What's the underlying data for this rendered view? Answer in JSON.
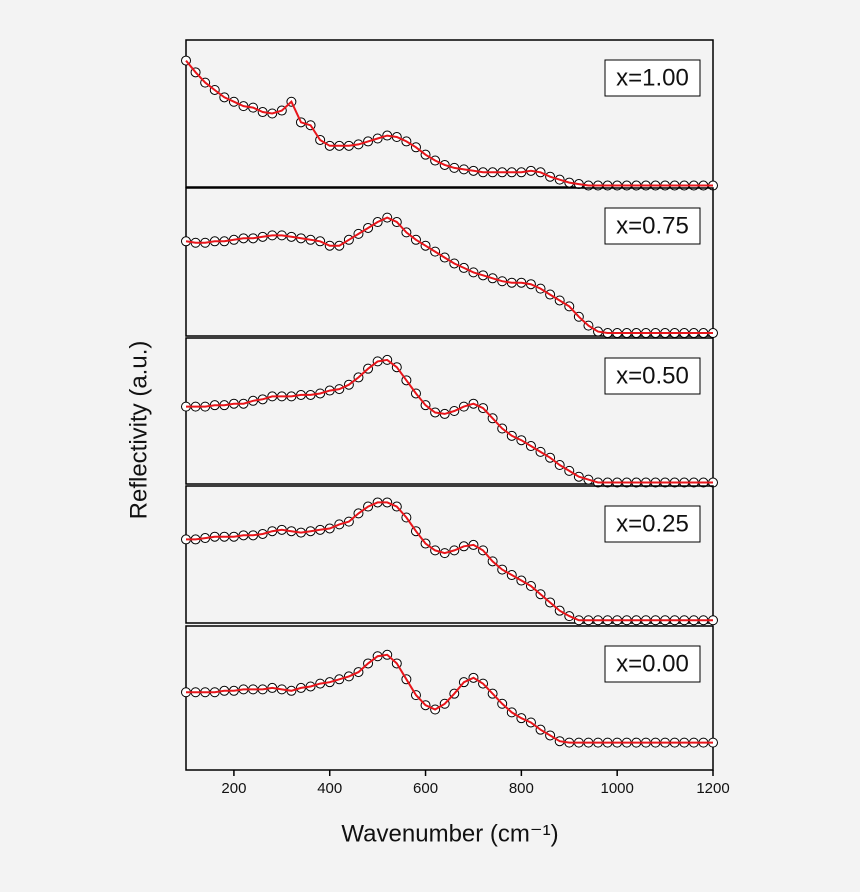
{
  "chart_data": {
    "type": "line",
    "x_label": "Wavenumber (cm⁻¹)",
    "y_label": "Reflectivity (a.u.)",
    "xlim": [
      100,
      1200
    ],
    "xticks": [
      200,
      400,
      600,
      800,
      1000,
      1200
    ],
    "ylim": [
      0,
      1
    ],
    "marker_color": "#000000",
    "line_color": "#e8161b",
    "x": [
      100,
      120,
      140,
      160,
      180,
      200,
      220,
      240,
      260,
      280,
      300,
      320,
      340,
      360,
      380,
      400,
      420,
      440,
      460,
      480,
      500,
      520,
      540,
      560,
      580,
      600,
      620,
      640,
      660,
      680,
      700,
      720,
      740,
      760,
      780,
      800,
      820,
      840,
      860,
      880,
      900,
      920,
      940,
      960,
      980,
      1000,
      1020,
      1040,
      1060,
      1080,
      1100,
      1120,
      1140,
      1160,
      1180,
      1200
    ],
    "series": [
      {
        "name": "x=1.00",
        "values": [
          0.86,
          0.78,
          0.71,
          0.66,
          0.61,
          0.58,
          0.55,
          0.54,
          0.51,
          0.5,
          0.52,
          0.58,
          0.44,
          0.42,
          0.32,
          0.28,
          0.28,
          0.28,
          0.29,
          0.31,
          0.33,
          0.35,
          0.34,
          0.31,
          0.27,
          0.22,
          0.18,
          0.15,
          0.13,
          0.12,
          0.11,
          0.1,
          0.1,
          0.1,
          0.1,
          0.1,
          0.11,
          0.1,
          0.07,
          0.05,
          0.03,
          0.02,
          0.01,
          0.01,
          0.01,
          0.01,
          0.01,
          0.01,
          0.01,
          0.01,
          0.01,
          0.01,
          0.01,
          0.01,
          0.01,
          0.01
        ]
      },
      {
        "name": "x=0.75",
        "values": [
          0.64,
          0.63,
          0.63,
          0.64,
          0.64,
          0.65,
          0.66,
          0.66,
          0.67,
          0.68,
          0.68,
          0.67,
          0.66,
          0.65,
          0.64,
          0.61,
          0.61,
          0.65,
          0.69,
          0.73,
          0.77,
          0.8,
          0.77,
          0.7,
          0.65,
          0.61,
          0.57,
          0.53,
          0.49,
          0.46,
          0.43,
          0.41,
          0.39,
          0.37,
          0.36,
          0.36,
          0.35,
          0.32,
          0.28,
          0.24,
          0.2,
          0.13,
          0.07,
          0.03,
          0.02,
          0.02,
          0.02,
          0.02,
          0.02,
          0.02,
          0.02,
          0.02,
          0.02,
          0.02,
          0.02,
          0.02
        ]
      },
      {
        "name": "x=0.50",
        "values": [
          0.53,
          0.53,
          0.53,
          0.54,
          0.54,
          0.55,
          0.55,
          0.57,
          0.58,
          0.6,
          0.6,
          0.6,
          0.61,
          0.61,
          0.62,
          0.64,
          0.65,
          0.68,
          0.73,
          0.79,
          0.84,
          0.85,
          0.8,
          0.71,
          0.62,
          0.54,
          0.49,
          0.48,
          0.5,
          0.53,
          0.55,
          0.52,
          0.45,
          0.38,
          0.33,
          0.3,
          0.26,
          0.22,
          0.18,
          0.13,
          0.09,
          0.05,
          0.03,
          0.01,
          0.01,
          0.01,
          0.01,
          0.01,
          0.01,
          0.01,
          0.01,
          0.01,
          0.01,
          0.01,
          0.01,
          0.01
        ]
      },
      {
        "name": "x=0.25",
        "values": [
          0.61,
          0.61,
          0.62,
          0.63,
          0.63,
          0.63,
          0.64,
          0.64,
          0.65,
          0.67,
          0.68,
          0.67,
          0.66,
          0.67,
          0.68,
          0.69,
          0.72,
          0.74,
          0.8,
          0.85,
          0.88,
          0.88,
          0.85,
          0.77,
          0.67,
          0.58,
          0.53,
          0.51,
          0.53,
          0.56,
          0.57,
          0.53,
          0.45,
          0.39,
          0.35,
          0.31,
          0.27,
          0.21,
          0.15,
          0.09,
          0.05,
          0.02,
          0.02,
          0.02,
          0.02,
          0.02,
          0.02,
          0.02,
          0.02,
          0.02,
          0.02,
          0.02,
          0.02,
          0.02,
          0.02,
          0.02
        ]
      },
      {
        "name": "x=0.00",
        "values": [
          0.54,
          0.54,
          0.54,
          0.54,
          0.55,
          0.55,
          0.56,
          0.56,
          0.56,
          0.57,
          0.56,
          0.55,
          0.57,
          0.58,
          0.6,
          0.61,
          0.63,
          0.65,
          0.68,
          0.74,
          0.79,
          0.8,
          0.74,
          0.63,
          0.52,
          0.45,
          0.42,
          0.46,
          0.53,
          0.61,
          0.64,
          0.6,
          0.53,
          0.46,
          0.4,
          0.36,
          0.33,
          0.28,
          0.24,
          0.2,
          0.19,
          0.19,
          0.19,
          0.19,
          0.19,
          0.19,
          0.19,
          0.19,
          0.19,
          0.19,
          0.19,
          0.19,
          0.19,
          0.19,
          0.19,
          0.19
        ]
      }
    ]
  }
}
